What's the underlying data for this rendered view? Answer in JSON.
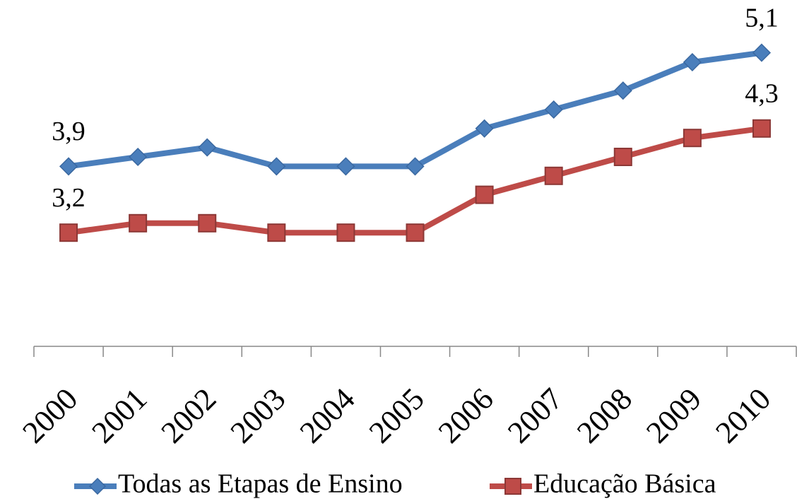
{
  "chart_data": {
    "type": "line",
    "categories": [
      "2000",
      "2001",
      "2002",
      "2003",
      "2004",
      "2005",
      "2006",
      "2007",
      "2008",
      "2009",
      "2010"
    ],
    "series": [
      {
        "name": "Todas as Etapas de Ensino",
        "color": "#4a7ebb",
        "marker": "diamond",
        "values": [
          3.9,
          4.0,
          4.1,
          3.9,
          3.9,
          3.9,
          4.3,
          4.5,
          4.7,
          5.0,
          5.1
        ],
        "value_labels": [
          "3,9",
          null,
          null,
          null,
          null,
          null,
          null,
          null,
          null,
          null,
          "5,1"
        ]
      },
      {
        "name": "Educação Básica",
        "color": "#be4b48",
        "marker": "square",
        "values": [
          3.2,
          3.3,
          3.3,
          3.2,
          3.2,
          3.2,
          3.6,
          3.8,
          4.0,
          4.2,
          4.3
        ],
        "value_labels": [
          "3,2",
          null,
          null,
          null,
          null,
          null,
          null,
          null,
          null,
          null,
          "4,3"
        ]
      }
    ],
    "ylim": [
      2,
      5.7
    ],
    "grid": false,
    "legend": "bottom"
  }
}
